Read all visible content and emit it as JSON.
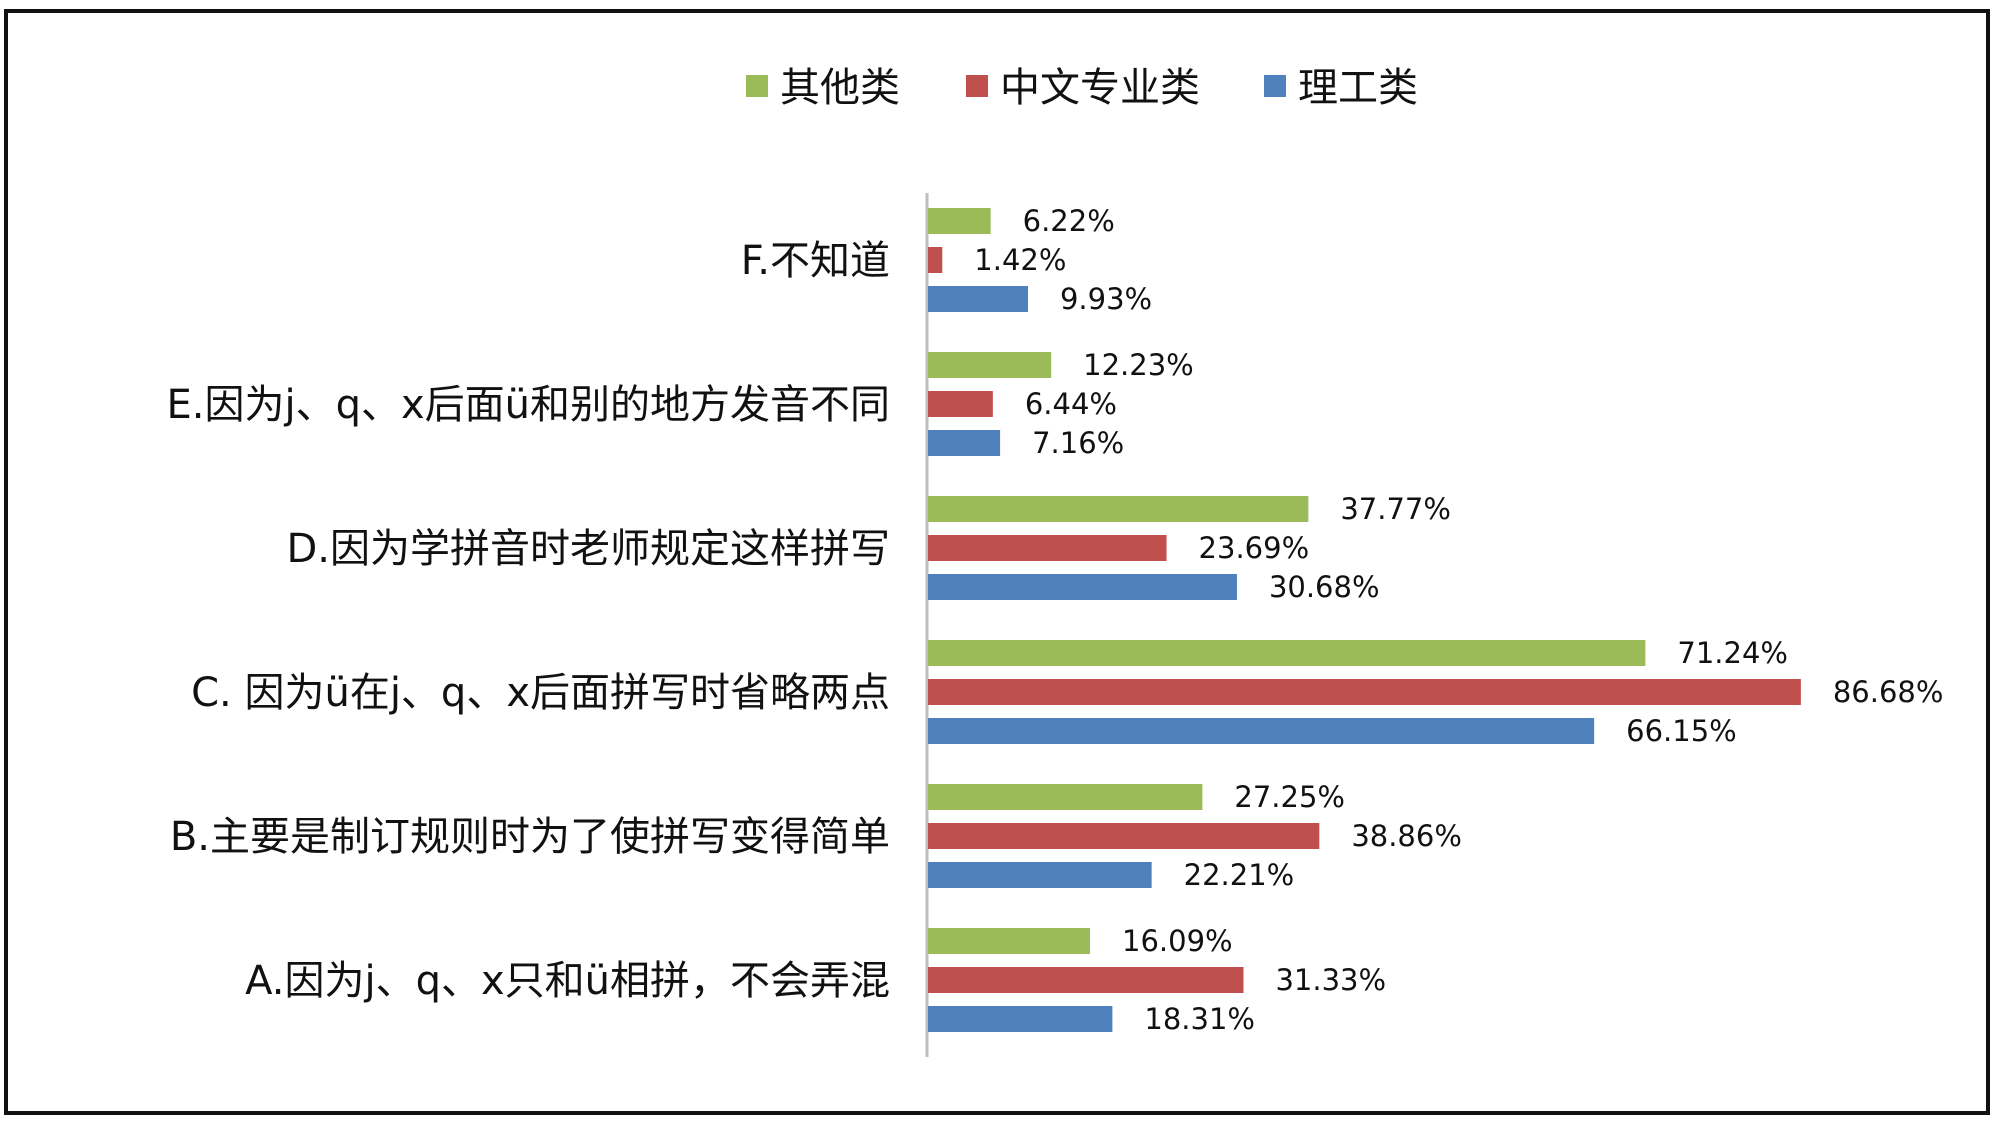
{
  "chart_data": {
    "type": "bar",
    "orientation": "horizontal",
    "categories": [
      "F.不知道",
      "E.因为j、q、x后面ü和别的地方发音不同",
      "D.因为学拼音时老师规定这样拼写",
      "C. 因为ü在j、q、x后面拼写时省略两点",
      "B.主要是制订规则时为了使拼写变得简单",
      "A.因为j、q、x只和ü相拼，不会弄混"
    ],
    "series": [
      {
        "name": "其他类",
        "color": "#9bbb59",
        "values": [
          6.22,
          12.23,
          37.77,
          71.24,
          27.25,
          16.09
        ],
        "labels": [
          "6.22%",
          "12.23%",
          "37.77%",
          "71.24%",
          "27.25%",
          "16.09%"
        ]
      },
      {
        "name": "中文专业类",
        "color": "#c0504d",
        "values": [
          1.42,
          6.44,
          23.69,
          86.68,
          38.86,
          31.33
        ],
        "labels": [
          "1.42%",
          "6.44%",
          "23.69%",
          "86.68%",
          "38.86%",
          "31.33%"
        ]
      },
      {
        "name": "理工类",
        "color": "#4f81bd",
        "values": [
          9.93,
          7.16,
          30.68,
          66.15,
          22.21,
          18.31
        ],
        "labels": [
          "9.93%",
          "7.16%",
          "30.68%",
          "66.15%",
          "22.21%",
          "18.31%"
        ]
      }
    ],
    "xlim": [
      0,
      100
    ],
    "unit": "%",
    "legend": "top-center",
    "grid": false,
    "axis_line_color": "#bfbfbf"
  }
}
